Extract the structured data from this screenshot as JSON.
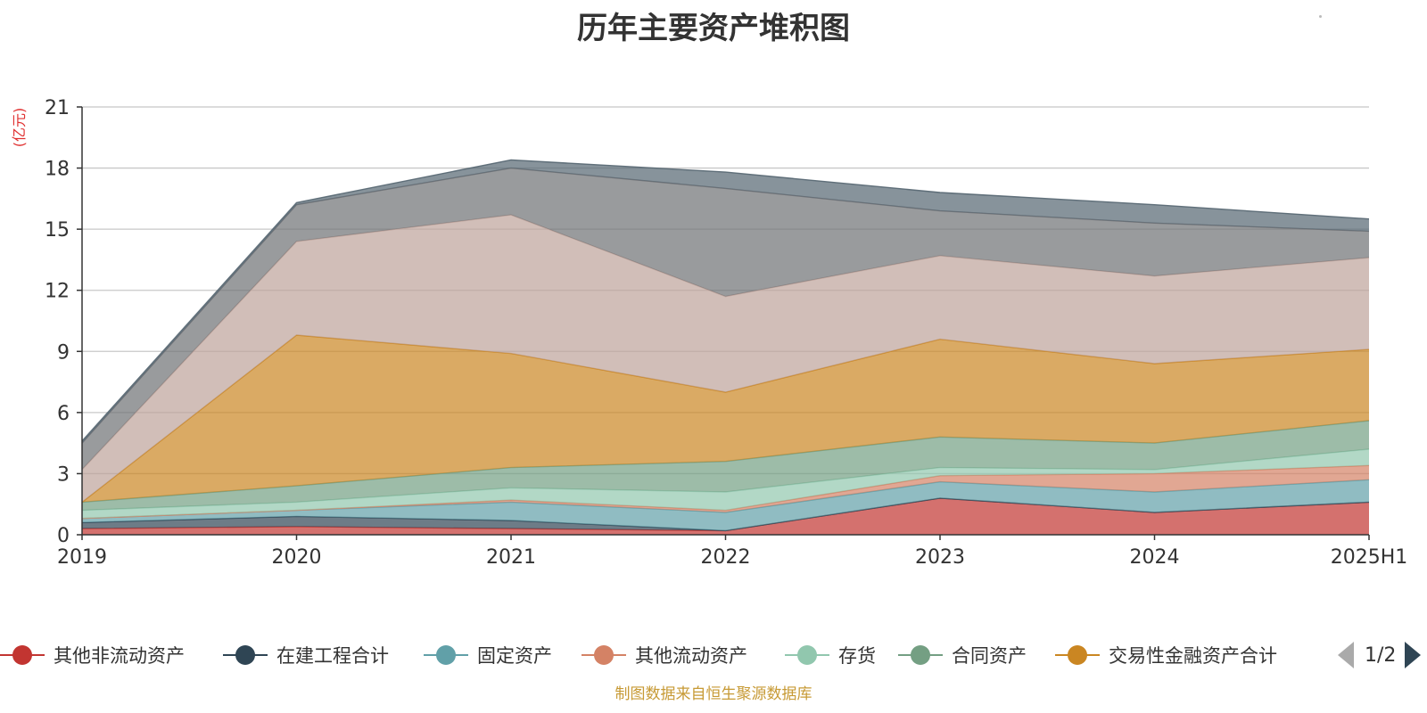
{
  "chart_data": {
    "type": "area",
    "stacked": true,
    "title": "历年主要资产堆积图",
    "ylabel": "(亿元)",
    "xlabel": "",
    "categories": [
      "2019",
      "2020",
      "2021",
      "2022",
      "2023",
      "2024",
      "2025H1"
    ],
    "ylim": [
      0,
      21
    ],
    "yticks": [
      0,
      3,
      6,
      9,
      12,
      15,
      18,
      21
    ],
    "grid": true,
    "legend_position": "bottom",
    "legend_page": "1/2",
    "series": [
      {
        "name": "其他非流动资产",
        "color": "#c23531",
        "values": [
          0.3,
          0.4,
          0.3,
          0.2,
          1.8,
          1.1,
          1.6
        ]
      },
      {
        "name": "在建工程合计",
        "color": "#2f4554",
        "values": [
          0.3,
          0.5,
          0.4,
          0.0,
          0.0,
          0.0,
          0.0
        ]
      },
      {
        "name": "固定资产",
        "color": "#61a0a8",
        "values": [
          0.2,
          0.3,
          0.9,
          0.9,
          0.8,
          1.0,
          1.1
        ]
      },
      {
        "name": "其他流动资产",
        "color": "#d48265",
        "values": [
          0.0,
          0.0,
          0.1,
          0.1,
          0.3,
          0.9,
          0.7
        ]
      },
      {
        "name": "存货",
        "color": "#91c7ae",
        "values": [
          0.4,
          0.4,
          0.6,
          0.9,
          0.4,
          0.2,
          0.8
        ]
      },
      {
        "name": "合同资产",
        "color": "#749f83",
        "values": [
          0.4,
          0.8,
          1.0,
          1.5,
          1.5,
          1.3,
          1.4
        ]
      },
      {
        "name": "交易性金融资产合计",
        "color": "#ca8622",
        "values": [
          0.0,
          7.4,
          5.6,
          3.4,
          4.8,
          3.9,
          3.5
        ]
      },
      {
        "name": "",
        "color": "#bda29a",
        "values": [
          1.6,
          4.6,
          6.8,
          4.7,
          4.1,
          4.3,
          4.5
        ]
      },
      {
        "name": "",
        "color": "#6e7074",
        "values": [
          1.3,
          1.8,
          2.3,
          5.3,
          2.2,
          2.6,
          1.3
        ]
      },
      {
        "name": "",
        "color": "#546570",
        "values": [
          0.1,
          0.1,
          0.4,
          0.8,
          0.9,
          0.9,
          0.6
        ]
      }
    ]
  },
  "footer": {
    "source_note": "制图数据来自恒生聚源数据库"
  }
}
